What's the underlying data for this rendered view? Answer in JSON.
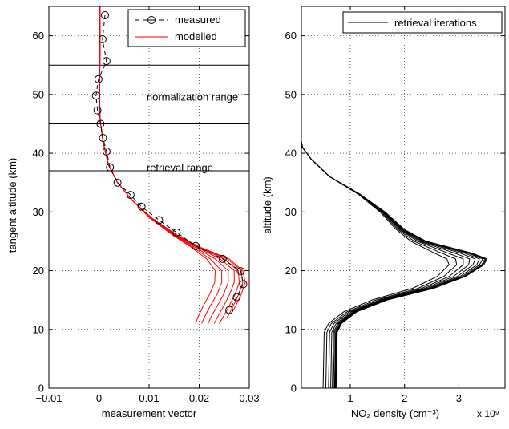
{
  "chart_data": [
    {
      "type": "line",
      "xlabel": "measurement vector",
      "ylabel": "tangent altitude (km)",
      "xlim": [
        -0.01,
        0.03
      ],
      "ylim": [
        0,
        65
      ],
      "x_ticks": [
        -0.01,
        0,
        0.01,
        0.02,
        0.03
      ],
      "x_tick_labels": [
        "−0.01",
        "0",
        "0.01",
        "0.02",
        "0.03"
      ],
      "y_ticks": [
        0,
        10,
        20,
        30,
        40,
        50,
        60
      ],
      "y_tick_labels": [
        "0",
        "10",
        "20",
        "30",
        "40",
        "50",
        "60"
      ],
      "grid": true,
      "legend": {
        "position": "top-right",
        "entries": [
          "measured",
          "modelled"
        ]
      },
      "annotations": [
        {
          "text": "normalization range",
          "x": 0.0095,
          "y": 49.5
        },
        {
          "text": "retrieval range",
          "x": 0.0095,
          "y": 37.5
        }
      ],
      "hlines": [
        55,
        45,
        37
      ],
      "colors": {
        "measured": "#000000",
        "modelled": "#ff0000"
      },
      "series": [
        {
          "name": "measured",
          "style": "dashed-circle",
          "y": [
            63.5,
            59.4,
            55.7,
            52.6,
            49.8,
            47.3,
            45.0,
            42.6,
            40.3,
            37.6,
            35.0,
            32.9,
            30.9,
            28.6,
            26.5,
            24.2,
            22.0,
            19.9,
            17.7,
            15.5,
            13.3
          ],
          "x": [
            0.0012,
            0.0007,
            0.0015,
            -0.0001,
            -0.0006,
            -0.0003,
            0.0003,
            0.0008,
            0.0015,
            0.0022,
            0.0037,
            0.0063,
            0.0085,
            0.012,
            0.0155,
            0.0193,
            0.0247,
            0.0283,
            0.0288,
            0.0275,
            0.026
          ]
        },
        {
          "name": "modelled",
          "style": "solid",
          "curves": [
            {
              "y": [
                65,
                57,
                50,
                46,
                42,
                38,
                35,
                32,
                29,
                26,
                24,
                22,
                20,
                18,
                16,
                14,
                12,
                11
              ],
              "x": [
                0.0002,
                0.0002,
                0.0001,
                0.0002,
                0.0008,
                0.0019,
                0.0037,
                0.0066,
                0.0101,
                0.0148,
                0.0184,
                0.0215,
                0.0232,
                0.0231,
                0.0221,
                0.0208,
                0.0197,
                0.0193
              ]
            },
            {
              "y": [
                65,
                57,
                50,
                46,
                42,
                38,
                35,
                32,
                29,
                26,
                24,
                22,
                20,
                18,
                16,
                14,
                12,
                11
              ],
              "x": [
                0.0002,
                0.0002,
                0.0001,
                0.0002,
                0.0008,
                0.0019,
                0.0037,
                0.0066,
                0.0102,
                0.015,
                0.0187,
                0.0222,
                0.0245,
                0.0245,
                0.0236,
                0.0222,
                0.021,
                0.0205
              ]
            },
            {
              "y": [
                65,
                57,
                50,
                46,
                42,
                38,
                35,
                32,
                29,
                26,
                24,
                22,
                20,
                18,
                16,
                14,
                12,
                11
              ],
              "x": [
                0.0002,
                0.0002,
                0.0001,
                0.0002,
                0.0008,
                0.0019,
                0.0037,
                0.0066,
                0.0103,
                0.0152,
                0.0191,
                0.0232,
                0.0258,
                0.0258,
                0.0249,
                0.0236,
                0.0223,
                0.0218
              ]
            },
            {
              "y": [
                65,
                57,
                50,
                46,
                42,
                38,
                35,
                32,
                29,
                26,
                24,
                22,
                20,
                18,
                16,
                14,
                12,
                11
              ],
              "x": [
                0.0002,
                0.0002,
                0.0001,
                0.0002,
                0.0008,
                0.0019,
                0.0037,
                0.0066,
                0.0104,
                0.0154,
                0.0195,
                0.0242,
                0.027,
                0.027,
                0.0261,
                0.0249,
                0.0236,
                0.023
              ]
            },
            {
              "y": [
                65,
                57,
                50,
                46,
                42,
                38,
                35,
                32,
                29,
                26,
                24,
                22,
                20,
                18,
                16,
                14,
                12,
                11
              ],
              "x": [
                0.0002,
                0.0002,
                0.0001,
                0.0002,
                0.0008,
                0.0019,
                0.0037,
                0.0066,
                0.0104,
                0.0155,
                0.0198,
                0.025,
                0.0278,
                0.028,
                0.0272,
                0.026,
                0.0247,
                0.024
              ]
            },
            {
              "y": [
                65,
                57,
                50,
                46,
                42,
                38,
                35,
                32,
                29,
                26,
                24,
                22,
                20,
                18,
                16,
                14,
                12
              ],
              "x": [
                0.0002,
                0.0002,
                0.0001,
                0.0002,
                0.0008,
                0.0019,
                0.0037,
                0.0066,
                0.0105,
                0.0156,
                0.02,
                0.0256,
                0.0284,
                0.0287,
                0.0279,
                0.0268,
                0.0256
              ]
            },
            {
              "y": [
                65,
                57,
                50,
                46,
                42,
                38,
                35,
                32,
                29,
                26,
                24,
                22,
                20,
                18,
                16,
                14,
                13
              ],
              "x": [
                0.0002,
                0.0002,
                0.0001,
                0.0002,
                0.0008,
                0.0019,
                0.0037,
                0.0066,
                0.0105,
                0.0157,
                0.0202,
                0.026,
                0.0287,
                0.0292,
                0.0284,
                0.0273,
                0.0266
              ]
            }
          ]
        }
      ]
    },
    {
      "type": "line",
      "xlabel": "NO₂ density (cm⁻³)",
      "x_multiplier": "x 10⁹",
      "ylabel": "altitude (km)",
      "xlim": [
        0.1,
        3.85
      ],
      "ylim": [
        0,
        65
      ],
      "x_ticks": [
        1,
        2,
        3
      ],
      "x_tick_labels": [
        "1",
        "2",
        "3"
      ],
      "y_ticks": [
        0,
        10,
        20,
        30,
        40,
        50,
        60
      ],
      "y_tick_labels": [
        "0",
        "10",
        "20",
        "30",
        "40",
        "50",
        "60"
      ],
      "grid": true,
      "legend": {
        "position": "top-right",
        "entries": [
          "retrieval iterations"
        ]
      },
      "colors": {
        "iterations": "#000000"
      },
      "series": [
        {
          "name": "retrieval iterations",
          "curves": [
            {
              "y": [
                0,
                9.5,
                11,
                13,
                15,
                17,
                19,
                21,
                22,
                23,
                25,
                27,
                30,
                33,
                36,
                39,
                41,
                42
              ],
              "x": [
                0.5,
                0.52,
                0.6,
                0.88,
                1.4,
                2.15,
                2.6,
                2.82,
                2.78,
                2.55,
                2.12,
                1.85,
                1.55,
                1.15,
                0.62,
                0.28,
                0.12,
                0.1
              ]
            },
            {
              "y": [
                0,
                9.5,
                11,
                13,
                15,
                17,
                19,
                21,
                22,
                23,
                25,
                27,
                30,
                33,
                36,
                39,
                41,
                42
              ],
              "x": [
                0.55,
                0.57,
                0.65,
                0.94,
                1.48,
                2.25,
                2.72,
                2.96,
                2.94,
                2.68,
                2.18,
                1.88,
                1.57,
                1.16,
                0.62,
                0.28,
                0.12,
                0.1
              ]
            },
            {
              "y": [
                0,
                9.5,
                11,
                13,
                15,
                17,
                19,
                21,
                22,
                23,
                25,
                27,
                30,
                33,
                36,
                39,
                41,
                42
              ],
              "x": [
                0.6,
                0.62,
                0.7,
                0.98,
                1.54,
                2.32,
                2.82,
                3.08,
                3.08,
                2.8,
                2.24,
                1.91,
                1.59,
                1.17,
                0.62,
                0.28,
                0.12,
                0.1
              ]
            },
            {
              "y": [
                0,
                9.5,
                11,
                13,
                15,
                17,
                19,
                21,
                22,
                23,
                25,
                27,
                30,
                33,
                36,
                39,
                41,
                42
              ],
              "x": [
                0.64,
                0.66,
                0.74,
                1.02,
                1.58,
                2.38,
                2.9,
                3.18,
                3.2,
                2.92,
                2.28,
                1.93,
                1.6,
                1.17,
                0.62,
                0.28,
                0.12,
                0.1
              ]
            },
            {
              "y": [
                0,
                9.5,
                11,
                13,
                15,
                17,
                19,
                21,
                22,
                23,
                25,
                27,
                30,
                33,
                36,
                39,
                41,
                42
              ],
              "x": [
                0.67,
                0.69,
                0.77,
                1.05,
                1.61,
                2.43,
                2.97,
                3.26,
                3.3,
                3.02,
                2.32,
                1.95,
                1.61,
                1.18,
                0.62,
                0.28,
                0.12,
                0.1
              ]
            },
            {
              "y": [
                0,
                9.5,
                11,
                13,
                15,
                17,
                19,
                21,
                22,
                23,
                25,
                27,
                30,
                33,
                36,
                39,
                41,
                42
              ],
              "x": [
                0.69,
                0.71,
                0.79,
                1.07,
                1.63,
                2.47,
                3.02,
                3.33,
                3.38,
                3.1,
                2.35,
                1.97,
                1.62,
                1.18,
                0.62,
                0.28,
                0.12,
                0.1
              ]
            },
            {
              "y": [
                0,
                9.5,
                11,
                13,
                15,
                17,
                19,
                21,
                22,
                23,
                25,
                27,
                30,
                33,
                36,
                39,
                41,
                42
              ],
              "x": [
                0.71,
                0.73,
                0.81,
                1.09,
                1.65,
                2.5,
                3.06,
                3.38,
                3.44,
                3.16,
                2.37,
                1.98,
                1.63,
                1.18,
                0.62,
                0.28,
                0.12,
                0.1
              ]
            },
            {
              "y": [
                0,
                9.5,
                11,
                13,
                15,
                17,
                19,
                21,
                22,
                23,
                25,
                27,
                30,
                33,
                36,
                39,
                41,
                42
              ],
              "x": [
                0.72,
                0.74,
                0.82,
                1.1,
                1.66,
                2.52,
                3.09,
                3.42,
                3.48,
                3.2,
                2.38,
                1.99,
                1.63,
                1.18,
                0.62,
                0.28,
                0.12,
                0.1
              ]
            },
            {
              "y": [
                0,
                9.5,
                11,
                13,
                15,
                17,
                19,
                21,
                22,
                23,
                25,
                27,
                30,
                33,
                36,
                39,
                41,
                42
              ],
              "x": [
                0.73,
                0.75,
                0.83,
                1.11,
                1.67,
                2.53,
                3.11,
                3.44,
                3.5,
                3.22,
                2.39,
                1.99,
                1.63,
                1.18,
                0.62,
                0.28,
                0.12,
                0.1
              ]
            },
            {
              "y": [
                0,
                9.5,
                11,
                13,
                15,
                17,
                19,
                21,
                22,
                23,
                25,
                27,
                30,
                33,
                36,
                39,
                41,
                42
              ],
              "x": [
                0.74,
                0.76,
                0.84,
                1.12,
                1.68,
                2.54,
                3.12,
                3.46,
                3.52,
                3.24,
                2.4,
                2.0,
                1.64,
                1.18,
                0.62,
                0.28,
                0.12,
                0.1
              ]
            }
          ]
        }
      ]
    }
  ]
}
